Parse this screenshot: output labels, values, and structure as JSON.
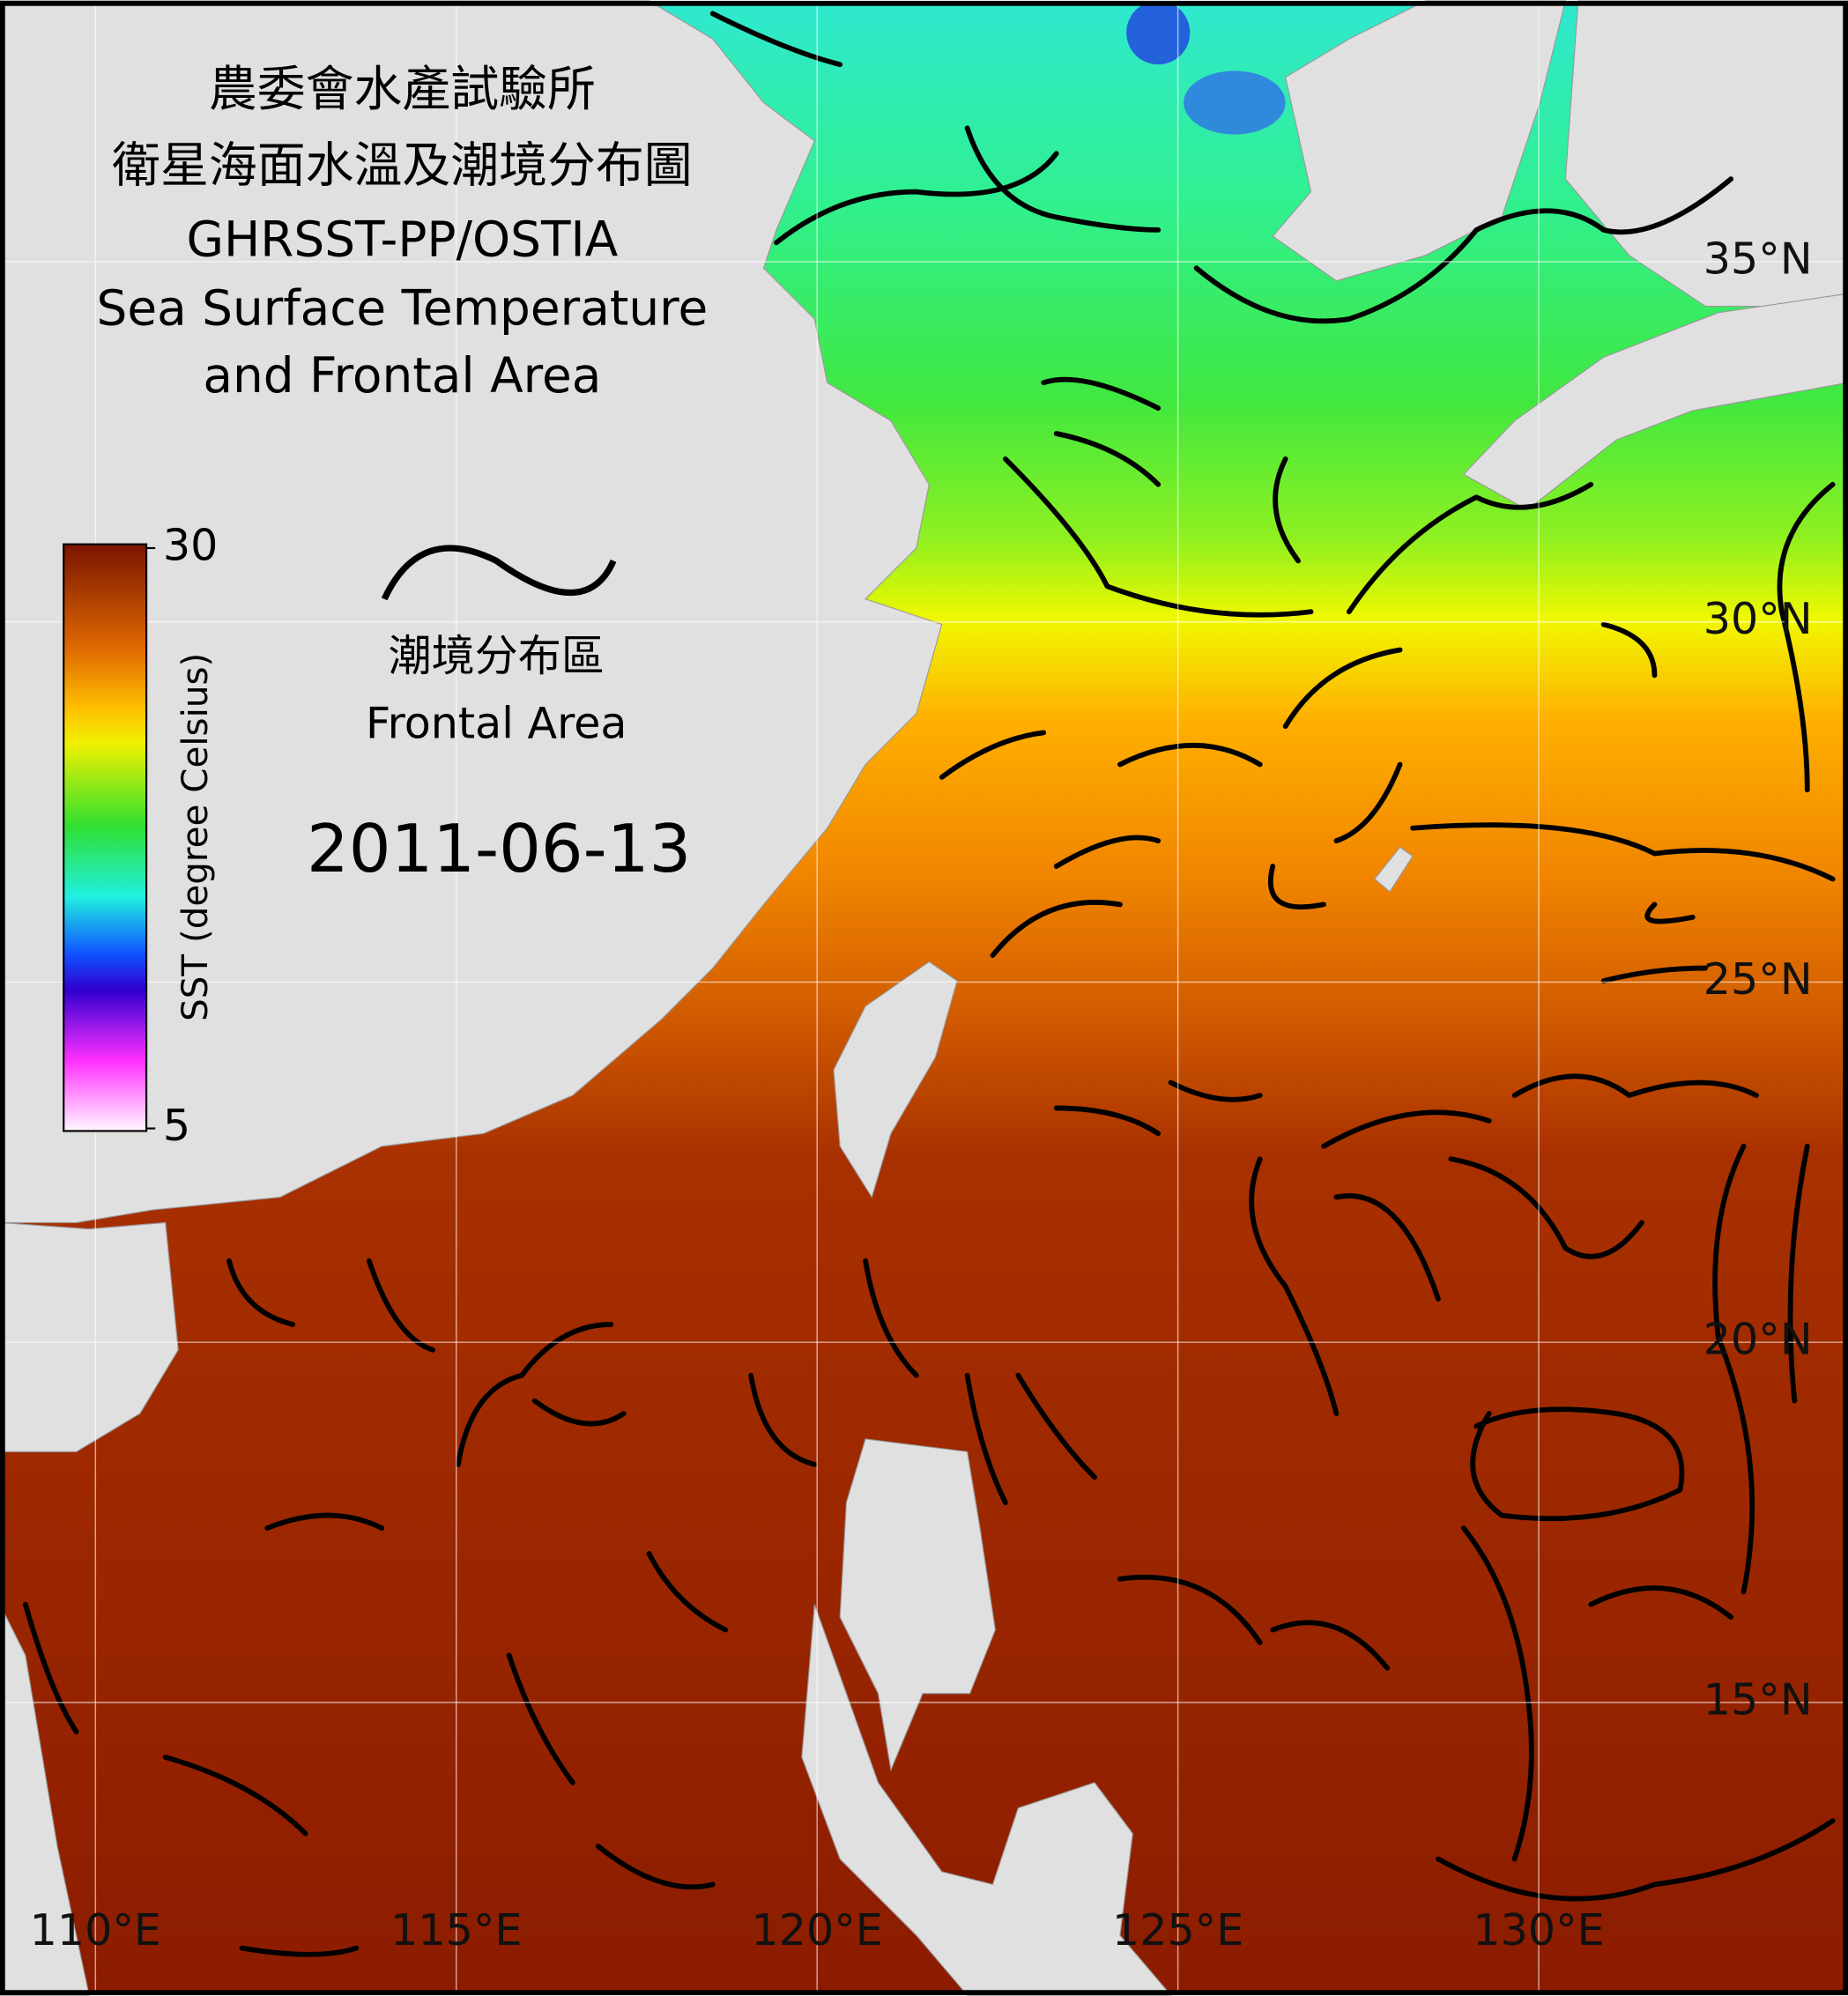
{
  "title": [
    "農委會水產試驗所",
    "衛星海面水溫及潮境分布圖",
    "GHRSST-PP/OSTIA",
    "Sea Surface Temperature",
    "and Frontal Area"
  ],
  "colorbar": {
    "label": "SST (degree Celsius)",
    "range": [
      5,
      30
    ],
    "ticks": [
      5,
      30
    ]
  },
  "legend": {
    "label_zh": "潮境分布區",
    "label_en": "Frontal Area"
  },
  "date": "2011-06-13",
  "map": {
    "lon_ticks": [
      {
        "value": 110,
        "label": "110°E"
      },
      {
        "value": 115,
        "label": "115°E"
      },
      {
        "value": 120,
        "label": "120°E"
      },
      {
        "value": 125,
        "label": "125°E"
      },
      {
        "value": 130,
        "label": "130°E"
      }
    ],
    "lat_ticks": [
      {
        "value": 35,
        "label": "35°N"
      },
      {
        "value": 30,
        "label": "30°N"
      },
      {
        "value": 25,
        "label": "25°N"
      },
      {
        "value": 20,
        "label": "20°N"
      },
      {
        "value": 15,
        "label": "15°N"
      }
    ]
  }
}
